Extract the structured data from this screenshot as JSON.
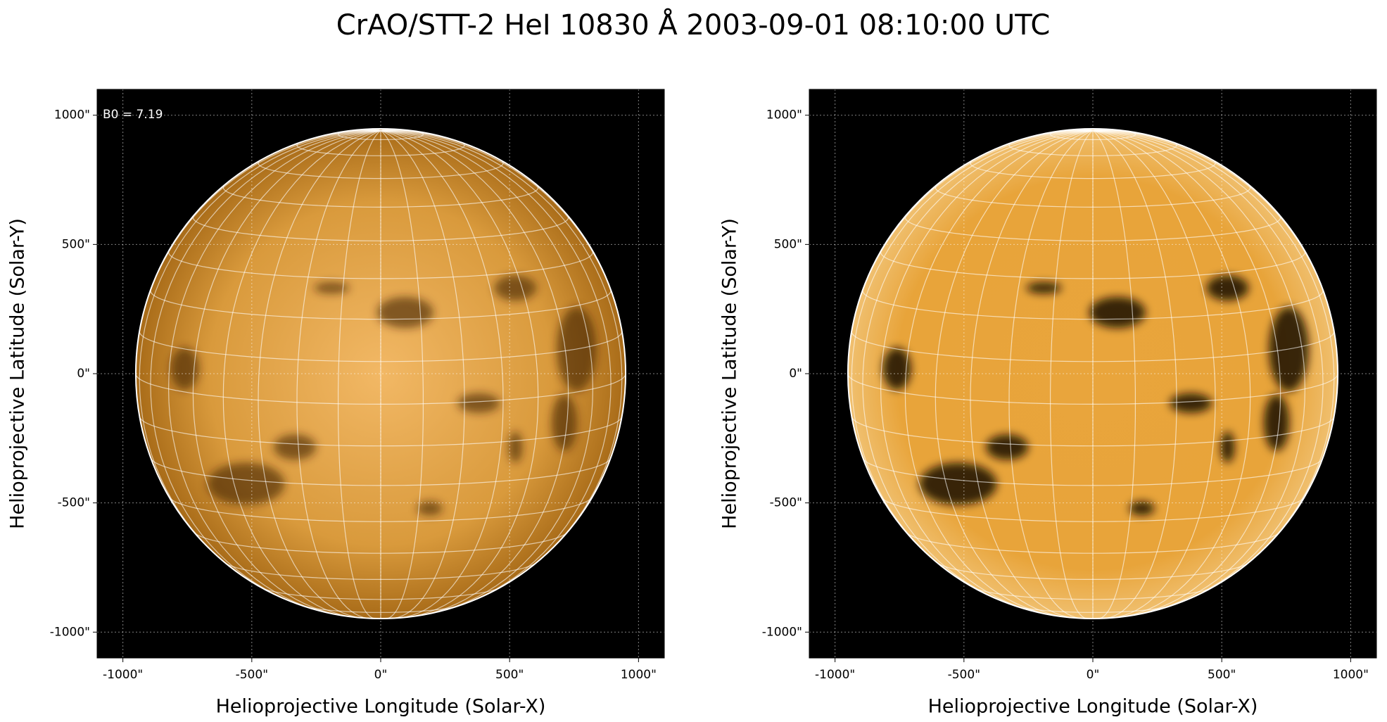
{
  "title": "CrAO/STT-2 HeI 10830 Å 2003-09-01 08:10:00 UTC",
  "chart_data": [
    {
      "type": "image",
      "annotation": "B0 = 7.19",
      "xlabel": "Helioprojective Longitude (Solar-X)",
      "ylabel": "Helioprojective Latitude (Solar-Y)",
      "xlim": [
        -1100,
        1100
      ],
      "ylim": [
        -1100,
        1100
      ],
      "xticks": [
        {
          "value": -1000,
          "label": "-1000\""
        },
        {
          "value": -500,
          "label": "-500\""
        },
        {
          "value": 0,
          "label": "0\""
        },
        {
          "value": 500,
          "label": "500\""
        },
        {
          "value": 1000,
          "label": "1000\""
        }
      ],
      "yticks": [
        {
          "value": -1000,
          "label": "-1000\""
        },
        {
          "value": -500,
          "label": "-500\""
        },
        {
          "value": 0,
          "label": "0\""
        },
        {
          "value": 500,
          "label": "500\""
        },
        {
          "value": 1000,
          "label": "1000\""
        }
      ],
      "grid": true
    },
    {
      "type": "image",
      "xlabel": "Helioprojective Longitude (Solar-X)",
      "ylabel": "Helioprojective Latitude (Solar-Y)",
      "xlim": [
        -1100,
        1100
      ],
      "ylim": [
        -1100,
        1100
      ],
      "xticks": [
        {
          "value": -1000,
          "label": "-1000\""
        },
        {
          "value": -500,
          "label": "-500\""
        },
        {
          "value": 0,
          "label": "0\""
        },
        {
          "value": 500,
          "label": "500\""
        },
        {
          "value": 1000,
          "label": "1000\""
        }
      ],
      "yticks": [
        {
          "value": -1000,
          "label": "-1000\""
        },
        {
          "value": -500,
          "label": "-500\""
        },
        {
          "value": 0,
          "label": "0\""
        },
        {
          "value": 500,
          "label": "500\""
        },
        {
          "value": 1000,
          "label": "1000\""
        }
      ],
      "grid": true
    }
  ]
}
